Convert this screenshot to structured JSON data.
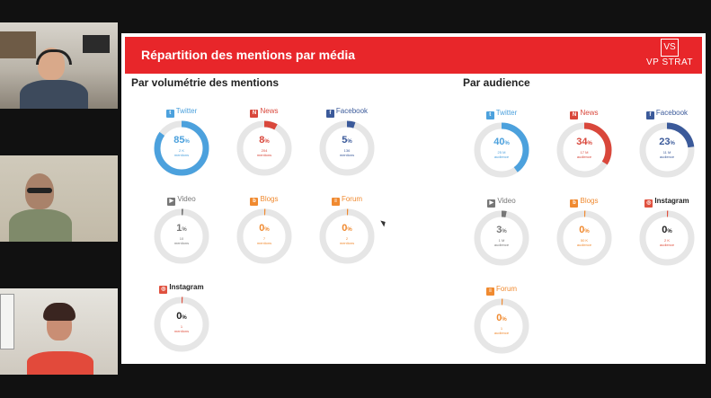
{
  "slide": {
    "title": "Répartition des mentions par média",
    "brand": "VP STRAT",
    "brand_mark": "VS",
    "left_title": "Par volumétrie des mentions",
    "right_title": "Par audience"
  },
  "left": [
    {
      "id": "twitter",
      "name": "Twitter",
      "icon": "twitter-icon",
      "color": "#4ca1dd",
      "pct": 85,
      "pct_text": "85",
      "value": "2 K",
      "unit": "mentions"
    },
    {
      "id": "news",
      "name": "News",
      "icon": "news-icon",
      "color": "#d9473b",
      "pct": 8,
      "pct_text": "8",
      "value": "204",
      "unit": "mentions"
    },
    {
      "id": "facebook",
      "name": "Facebook",
      "icon": "facebook-icon",
      "color": "#3b5a9a",
      "pct": 5,
      "pct_text": "5",
      "value": "136",
      "unit": "mentions"
    },
    {
      "id": "video",
      "name": "Video",
      "icon": "video-icon",
      "color": "#777777",
      "pct": 1,
      "pct_text": "1",
      "value": "10",
      "unit": "mentions"
    },
    {
      "id": "blogs",
      "name": "Blogs",
      "icon": "blogs-icon",
      "color": "#f08a30",
      "pct": 0.5,
      "pct_text": "0",
      "value": "7",
      "unit": "mentions"
    },
    {
      "id": "forum",
      "name": "Forum",
      "icon": "forum-icon",
      "color": "#f08a30",
      "pct": 0.5,
      "pct_text": "0",
      "value": "2",
      "unit": "mentions"
    },
    {
      "id": "instagram",
      "name": "Instagram",
      "icon": "instagram-icon",
      "color": "#e0513f",
      "pct": 0.5,
      "pct_text": "0",
      "value": "1",
      "unit": "mentions"
    }
  ],
  "right": [
    {
      "id": "twitter",
      "name": "Twitter",
      "icon": "twitter-icon",
      "color": "#4ca1dd",
      "pct": 40,
      "pct_text": "40",
      "value": "25 M",
      "unit": "audience"
    },
    {
      "id": "news",
      "name": "News",
      "icon": "news-icon",
      "color": "#d9473b",
      "pct": 34,
      "pct_text": "34",
      "value": "17 M",
      "unit": "audience"
    },
    {
      "id": "facebook",
      "name": "Facebook",
      "icon": "facebook-icon",
      "color": "#3b5a9a",
      "pct": 23,
      "pct_text": "23",
      "value": "11 M",
      "unit": "audience"
    },
    {
      "id": "video",
      "name": "Video",
      "icon": "video-icon",
      "color": "#777777",
      "pct": 3,
      "pct_text": "3",
      "value": "1 M",
      "unit": "audience"
    },
    {
      "id": "blogs",
      "name": "Blogs",
      "icon": "blogs-icon",
      "color": "#f08a30",
      "pct": 0.5,
      "pct_text": "0",
      "value": "50 K",
      "unit": "audience"
    },
    {
      "id": "instagram",
      "name": "Instagram",
      "icon": "instagram-icon",
      "color": "#e0513f",
      "pct": 0.5,
      "pct_text": "0",
      "value": "2 K",
      "unit": "audience"
    },
    {
      "id": "forum",
      "name": "Forum",
      "icon": "forum-icon",
      "color": "#f08a30",
      "pct": 0.5,
      "pct_text": "0",
      "value": "1",
      "unit": "audience"
    }
  ]
}
